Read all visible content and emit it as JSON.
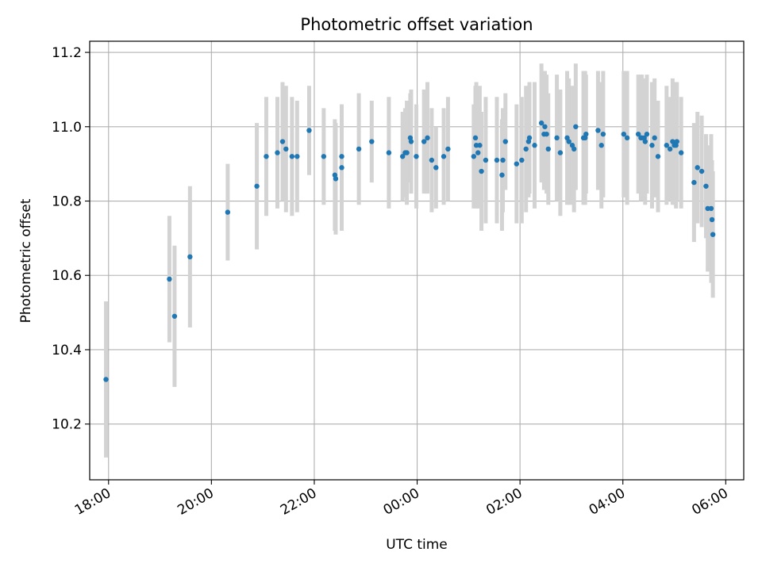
{
  "chart_data": {
    "type": "scatter",
    "title": "Photometric offset variation",
    "xlabel": "UTC time",
    "ylabel": "Photometric offset",
    "x_unit": "UTC time of night (hours after the 18:00 tick read as 18.0; values past 24 are after midnight)",
    "xlim": [
      "17:38",
      "06:21"
    ],
    "ylim": [
      10.05,
      11.23
    ],
    "x_ticks": [
      "18:00",
      "20:00",
      "22:00",
      "00:00",
      "02:00",
      "04:00",
      "06:00"
    ],
    "y_ticks": [
      "10.2",
      "10.4",
      "10.6",
      "10.8",
      "11.0",
      "11.2"
    ],
    "grid": true,
    "colors": {
      "point": "#1f77b4",
      "errorbar": "#d3d3d3",
      "grid": "#b0b0b0"
    },
    "series": [
      {
        "x": [
          "17:57",
          "19:11",
          "19:17",
          "19:35",
          "20:19",
          "20:53",
          "21:04",
          "21:17",
          "21:23",
          "21:27",
          "21:34",
          "21:40",
          "21:54",
          "22:11",
          "22:24",
          "22:25",
          "22:32",
          "22:32",
          "22:52",
          "23:07",
          "23:27",
          "23:43",
          "23:46",
          "23:48",
          "23:52",
          "23:53",
          "23:59",
          "24:08",
          "24:12",
          "24:17",
          "24:22",
          "24:31",
          "24:36",
          "25:06",
          "25:08",
          "25:09",
          "25:11",
          "25:13",
          "25:15",
          "25:20",
          "25:33",
          "25:39",
          "25:40",
          "25:43",
          "25:56",
          "26:02",
          "26:07",
          "26:10",
          "26:11",
          "26:17",
          "26:25",
          "26:28",
          "26:29",
          "26:31",
          "26:33",
          "26:43",
          "26:47",
          "26:55",
          "26:57",
          "27:01",
          "27:03",
          "27:05",
          "27:14",
          "27:16",
          "27:17",
          "27:31",
          "27:35",
          "27:37",
          "28:01",
          "28:05",
          "28:18",
          "28:21",
          "28:22",
          "28:25",
          "28:26",
          "28:28",
          "28:34",
          "28:37",
          "28:41",
          "28:51",
          "28:55",
          "28:58",
          "29:00",
          "29:02",
          "29:03",
          "29:08",
          "29:23",
          "29:27",
          "29:32",
          "29:37",
          "29:39",
          "29:43",
          "29:44",
          "29:45"
        ],
        "y": [
          10.32,
          10.59,
          10.49,
          10.65,
          10.77,
          10.84,
          10.92,
          10.93,
          10.96,
          10.94,
          10.92,
          10.92,
          10.99,
          10.92,
          10.87,
          10.86,
          10.89,
          10.92,
          10.94,
          10.96,
          10.93,
          10.92,
          10.93,
          10.93,
          10.97,
          10.96,
          10.92,
          10.96,
          10.97,
          10.91,
          10.89,
          10.92,
          10.94,
          10.92,
          10.97,
          10.95,
          10.93,
          10.95,
          10.88,
          10.91,
          10.91,
          10.87,
          10.91,
          10.96,
          10.9,
          10.91,
          10.94,
          10.96,
          10.97,
          10.95,
          11.01,
          10.98,
          11.0,
          10.98,
          10.94,
          10.97,
          10.93,
          10.97,
          10.96,
          10.95,
          10.94,
          11.0,
          10.97,
          10.97,
          10.98,
          10.99,
          10.95,
          10.98,
          10.98,
          10.97,
          10.98,
          10.97,
          10.97,
          10.97,
          10.96,
          10.98,
          10.95,
          10.97,
          10.92,
          10.95,
          10.94,
          10.96,
          10.95,
          10.95,
          10.96,
          10.93,
          10.85,
          10.89,
          10.88,
          10.84,
          10.78,
          10.78,
          10.75,
          10.71
        ],
        "yerr": [
          0.21,
          0.17,
          0.19,
          0.19,
          0.13,
          0.17,
          0.16,
          0.15,
          0.16,
          0.17,
          0.16,
          0.15,
          0.12,
          0.13,
          0.15,
          0.15,
          0.17,
          0.14,
          0.15,
          0.11,
          0.15,
          0.12,
          0.12,
          0.14,
          0.12,
          0.14,
          0.14,
          0.14,
          0.15,
          0.14,
          0.11,
          0.13,
          0.14,
          0.14,
          0.14,
          0.17,
          0.15,
          0.16,
          0.16,
          0.17,
          0.17,
          0.15,
          0.14,
          0.13,
          0.16,
          0.17,
          0.17,
          0.15,
          0.15,
          0.17,
          0.16,
          0.15,
          0.15,
          0.16,
          0.15,
          0.17,
          0.17,
          0.18,
          0.17,
          0.16,
          0.17,
          0.17,
          0.18,
          0.18,
          0.16,
          0.16,
          0.17,
          0.17,
          0.17,
          0.18,
          0.16,
          0.17,
          0.17,
          0.16,
          0.17,
          0.16,
          0.17,
          0.16,
          0.15,
          0.16,
          0.14,
          0.17,
          0.16,
          0.17,
          0.16,
          0.15,
          0.16,
          0.15,
          0.15,
          0.14,
          0.17,
          0.2,
          0.16,
          0.17
        ]
      }
    ]
  }
}
